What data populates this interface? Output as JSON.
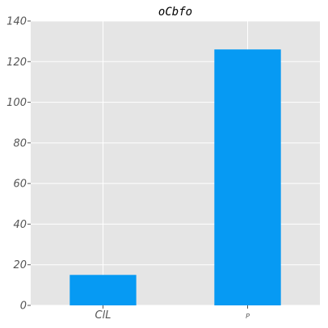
{
  "chart_data": {
    "type": "bar",
    "title": "oCbfo",
    "xlabel": "",
    "ylabel": "",
    "categories": [
      "ClL",
      "P"
    ],
    "values": [
      15,
      126
    ],
    "ylim": [
      0,
      140
    ],
    "yticks": [
      0,
      20,
      40,
      60,
      80,
      100,
      120,
      140
    ],
    "grid": true,
    "legend": "none",
    "colors": {
      "bar": "#069af3",
      "plot_background": "#e5e5e5",
      "grid": "#ffffff",
      "tick_label": "#555555"
    }
  }
}
